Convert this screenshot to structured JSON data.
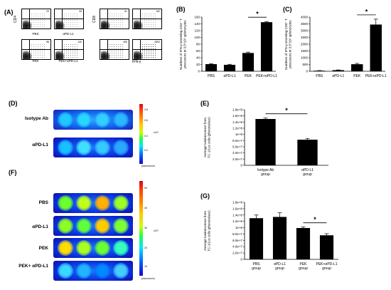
{
  "panels": {
    "A": "(A)",
    "B": "(B)",
    "C": "(C)",
    "D": "(D)",
    "E": "(E)",
    "F": "(F)",
    "G": "(G)"
  },
  "flow": {
    "y_left": "CD4",
    "y_right": "CD8",
    "x_axis": "IFN-γ",
    "plots": [
      {
        "label": "PBS",
        "value": "23"
      },
      {
        "label": "αPD-L1",
        "value": "39"
      },
      {
        "label": "PEK",
        "value": "98"
      },
      {
        "label": "PEK+αPD-L1",
        "value": "140"
      },
      {
        "label": "",
        "value": "61"
      },
      {
        "label": "",
        "value": "152"
      },
      {
        "label": "",
        "value": "406"
      },
      {
        "label": "",
        "value": "2800"
      }
    ]
  },
  "imaging_D": {
    "rows": [
      {
        "label": "Isotype Ab"
      },
      {
        "label": "αPD-L1"
      }
    ],
    "scale_ticks": [
      "0.8",
      "0.6",
      "0.4",
      "0.2"
    ],
    "scale_exp": "x10⁶",
    "scale_unit": "p/sec/cm²/sr"
  },
  "imaging_F": {
    "rows": [
      {
        "label": "PBS"
      },
      {
        "label": "αPD-L1"
      },
      {
        "label": "PEK"
      },
      {
        "label": "PEK+ αPD-L1"
      }
    ],
    "scale_ticks": [
      "50",
      "40",
      "30",
      "20",
      "10"
    ],
    "scale_exp": "x10⁷",
    "scale_unit": "p/sec/cm²/sr"
  },
  "chart_data": [
    {
      "panel": "B",
      "type": "bar",
      "categories": [
        "PBS",
        "αPD-L1",
        "PEK",
        "PEK+αPD-L1"
      ],
      "values": [
        21,
        19,
        54,
        145
      ],
      "errors": [
        1.5,
        1.5,
        2.5,
        2
      ],
      "ylim": [
        0,
        160
      ],
      "yticks": [
        0,
        20,
        40,
        60,
        80,
        100,
        120,
        140,
        160
      ],
      "ylabel": "Numbers of IFN-γ-secreting CD4⁺ T precursors in 3.5*10⁵ splenocytes",
      "xlabel": "",
      "significance": "*"
    },
    {
      "panel": "C",
      "type": "bar",
      "categories": [
        "PBS",
        "αPD-L1",
        "PEK",
        "PEK+αPD-L1"
      ],
      "values": [
        40,
        80,
        520,
        3450
      ],
      "errors": [
        15,
        20,
        60,
        400
      ],
      "ylim": [
        0,
        4000
      ],
      "yticks": [
        0,
        500,
        1000,
        1500,
        2000,
        2500,
        3000,
        3500,
        4000
      ],
      "ylabel": "Numbers of IFN-γ-secreting CD8⁺ T precursors in 3.5*10⁵ splenocytes",
      "xlabel": "",
      "significance": "*"
    },
    {
      "panel": "E",
      "type": "bar",
      "categories": [
        "Isotype Ab group",
        "αPD-L1 group"
      ],
      "values": [
        150000000,
        83000000
      ],
      "errors": [
        3000000,
        4000000
      ],
      "ylim": [
        0,
        180000000
      ],
      "yticks": [
        0,
        20000000,
        40000000,
        60000000,
        80000000,
        100000000,
        120000000,
        140000000,
        160000000,
        180000000
      ],
      "yticklabels": [
        "0",
        "2.0e+7",
        "4.0e+7",
        "6.0e+7",
        "8.0e+7",
        "1e+8",
        "1.2e+8",
        "1.4e+8",
        "1.6e+8",
        "1.8e+8"
      ],
      "ylabel": "Average luminescence from TC-1/Luc cells (photons/sec)",
      "xlabel": "",
      "significance": "*"
    },
    {
      "panel": "G",
      "type": "bar",
      "categories": [
        "PBS group",
        "αPD-L1 group",
        "PEK group",
        "PEK+αPD-L1 group"
      ],
      "values": [
        130000000,
        134000000,
        99000000,
        76000000
      ],
      "errors": [
        10000000,
        13000000,
        3000000,
        5000000
      ],
      "ylim": [
        0,
        180000000
      ],
      "yticks": [
        0,
        20000000,
        40000000,
        60000000,
        80000000,
        100000000,
        120000000,
        140000000,
        160000000,
        180000000
      ],
      "yticklabels": [
        "0",
        "2.0e+7",
        "4.0e+7",
        "6.0e+7",
        "8.0e+7",
        "1e+8",
        "1.2e+8",
        "1.4e+8",
        "1.6e+8",
        "1.8e+8"
      ],
      "ylabel": "Average luminescence from TC-1/Luc cells (photons/sec)",
      "xlabel": "",
      "significance": "*"
    }
  ]
}
